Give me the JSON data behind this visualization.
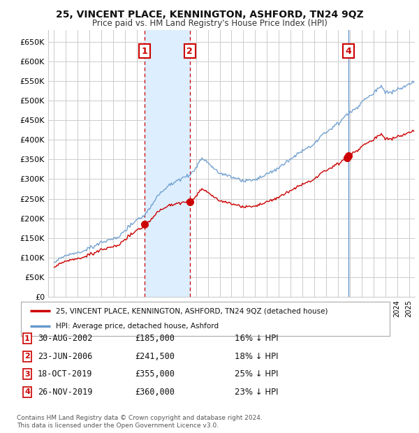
{
  "title": "25, VINCENT PLACE, KENNINGTON, ASHFORD, TN24 9QZ",
  "subtitle": "Price paid vs. HM Land Registry's House Price Index (HPI)",
  "ylabel_ticks": [
    "£0",
    "£50K",
    "£100K",
    "£150K",
    "£200K",
    "£250K",
    "£300K",
    "£350K",
    "£400K",
    "£450K",
    "£500K",
    "£550K",
    "£600K",
    "£650K"
  ],
  "ytick_values": [
    0,
    50000,
    100000,
    150000,
    200000,
    250000,
    300000,
    350000,
    400000,
    450000,
    500000,
    550000,
    600000,
    650000
  ],
  "ylim": [
    0,
    680000
  ],
  "xlim_start": 1994.5,
  "xlim_end": 2025.5,
  "sale_events": [
    {
      "num": 1,
      "date": "30-AUG-2002",
      "price": 185000,
      "pct": "16%",
      "x": 2002.667,
      "show_box": true,
      "line_style": "dashed_red"
    },
    {
      "num": 2,
      "date": "23-JUN-2006",
      "price": 241500,
      "pct": "18%",
      "x": 2006.47,
      "show_box": true,
      "line_style": "dashed_red"
    },
    {
      "num": 3,
      "date": "18-OCT-2019",
      "price": 355000,
      "pct": "25%",
      "x": 2019.8,
      "show_box": false,
      "line_style": "none"
    },
    {
      "num": 4,
      "date": "26-NOV-2019",
      "price": 360000,
      "pct": "23%",
      "x": 2019.9,
      "show_box": true,
      "line_style": "solid_blue"
    }
  ],
  "highlight_ranges": [
    [
      2002.667,
      2006.47
    ]
  ],
  "legend_line1": "25, VINCENT PLACE, KENNINGTON, ASHFORD, TN24 9QZ (detached house)",
  "legend_line2": "HPI: Average price, detached house, Ashford",
  "footer1": "Contains HM Land Registry data © Crown copyright and database right 2024.",
  "footer2": "This data is licensed under the Open Government Licence v3.0.",
  "bg_color": "#ffffff",
  "grid_color": "#cccccc",
  "hpi_line_color": "#6699cc",
  "sale_line_color": "#cc0000",
  "highlight_color": "#ddeeff",
  "box_color": "#cc0000",
  "table_data": [
    {
      "num": 1,
      "date": "30-AUG-2002",
      "price": "£185,000",
      "pct": "16% ↓ HPI"
    },
    {
      "num": 2,
      "date": "23-JUN-2006",
      "price": "£241,500",
      "pct": "18% ↓ HPI"
    },
    {
      "num": 3,
      "date": "18-OCT-2019",
      "price": "£355,000",
      "pct": "25% ↓ HPI"
    },
    {
      "num": 4,
      "date": "26-NOV-2019",
      "price": "£360,000",
      "pct": "23% ↓ HPI"
    }
  ]
}
